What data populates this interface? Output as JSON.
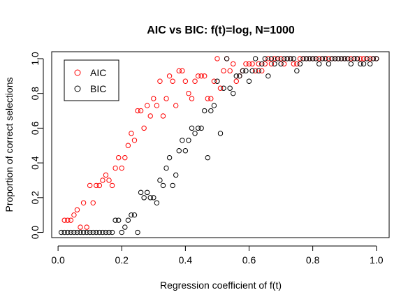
{
  "chart_data": {
    "type": "scatter",
    "title": "AIC vs BIC: f(t)=log, N=1000",
    "xlabel": "Regression coefficient of f(t)",
    "ylabel": "Proportion of correct selections",
    "xlim": [
      -0.02,
      1.04
    ],
    "ylim": [
      -0.03,
      1.04
    ],
    "xticks": [
      "0.0",
      "0.2",
      "0.4",
      "0.6",
      "0.8",
      "1.0"
    ],
    "yticks": [
      "0.0",
      "0.2",
      "0.4",
      "0.6",
      "0.8",
      "1.0"
    ],
    "grid": false,
    "legend": {
      "position": "top-left",
      "entries": [
        "AIC",
        "BIC"
      ]
    },
    "series": [
      {
        "name": "AIC",
        "color": "#ff0000",
        "marker": "open-circle",
        "points": [
          [
            0.02,
            0.07
          ],
          [
            0.03,
            0.07
          ],
          [
            0.04,
            0.07
          ],
          [
            0.05,
            0.1
          ],
          [
            0.06,
            0.13
          ],
          [
            0.07,
            0.03
          ],
          [
            0.08,
            0.17
          ],
          [
            0.09,
            0.03
          ],
          [
            0.1,
            0.27
          ],
          [
            0.11,
            0.17
          ],
          [
            0.12,
            0.27
          ],
          [
            0.13,
            0.27
          ],
          [
            0.14,
            0.3
          ],
          [
            0.15,
            0.33
          ],
          [
            0.16,
            0.3
          ],
          [
            0.17,
            0.27
          ],
          [
            0.18,
            0.37
          ],
          [
            0.19,
            0.43
          ],
          [
            0.2,
            0.37
          ],
          [
            0.21,
            0.43
          ],
          [
            0.22,
            0.5
          ],
          [
            0.23,
            0.57
          ],
          [
            0.24,
            0.53
          ],
          [
            0.25,
            0.7
          ],
          [
            0.26,
            0.7
          ],
          [
            0.27,
            0.6
          ],
          [
            0.28,
            0.73
          ],
          [
            0.29,
            0.67
          ],
          [
            0.3,
            0.77
          ],
          [
            0.31,
            0.73
          ],
          [
            0.32,
            0.87
          ],
          [
            0.33,
            0.67
          ],
          [
            0.34,
            0.77
          ],
          [
            0.35,
            0.9
          ],
          [
            0.36,
            0.87
          ],
          [
            0.37,
            0.73
          ],
          [
            0.38,
            0.93
          ],
          [
            0.39,
            0.93
          ],
          [
            0.4,
            0.87
          ],
          [
            0.41,
            0.8
          ],
          [
            0.42,
            0.77
          ],
          [
            0.43,
            0.87
          ],
          [
            0.44,
            0.9
          ],
          [
            0.45,
            0.9
          ],
          [
            0.46,
            0.9
          ],
          [
            0.47,
            0.77
          ],
          [
            0.48,
            0.77
          ],
          [
            0.49,
            0.87
          ],
          [
            0.5,
            1.0
          ],
          [
            0.51,
            0.83
          ],
          [
            0.52,
            0.93
          ],
          [
            0.53,
            1.0
          ],
          [
            0.54,
            0.93
          ],
          [
            0.55,
            0.97
          ],
          [
            0.56,
            0.87
          ],
          [
            0.57,
            0.9
          ],
          [
            0.58,
            0.93
          ],
          [
            0.59,
            0.97
          ],
          [
            0.6,
            0.97
          ],
          [
            0.61,
            0.97
          ],
          [
            0.62,
            0.93
          ],
          [
            0.63,
            0.97
          ],
          [
            0.64,
            0.93
          ],
          [
            0.65,
            0.97
          ],
          [
            0.66,
            1.0
          ],
          [
            0.67,
            0.97
          ],
          [
            0.68,
            1.0
          ],
          [
            0.69,
            1.0
          ],
          [
            0.7,
            1.0
          ],
          [
            0.71,
            0.97
          ],
          [
            0.72,
            1.0
          ],
          [
            0.73,
            1.0
          ],
          [
            0.74,
            0.97
          ],
          [
            0.75,
            0.97
          ],
          [
            0.76,
            1.0
          ],
          [
            0.77,
            1.0
          ],
          [
            0.78,
            1.0
          ],
          [
            0.79,
            1.0
          ],
          [
            0.8,
            1.0
          ],
          [
            0.81,
            1.0
          ],
          [
            0.82,
            1.0
          ],
          [
            0.83,
            1.0
          ],
          [
            0.84,
            1.0
          ],
          [
            0.85,
            1.0
          ],
          [
            0.86,
            1.0
          ],
          [
            0.87,
            1.0
          ],
          [
            0.88,
            1.0
          ],
          [
            0.89,
            1.0
          ],
          [
            0.9,
            1.0
          ],
          [
            0.91,
            1.0
          ],
          [
            0.92,
            1.0
          ],
          [
            0.93,
            1.0
          ],
          [
            0.94,
            1.0
          ],
          [
            0.95,
            1.0
          ],
          [
            0.96,
            1.0
          ],
          [
            0.97,
            1.0
          ],
          [
            0.98,
            1.0
          ],
          [
            0.99,
            1.0
          ],
          [
            1.0,
            1.0
          ]
        ]
      },
      {
        "name": "BIC",
        "color": "#000000",
        "marker": "open-circle",
        "points": [
          [
            0.01,
            0.0
          ],
          [
            0.02,
            0.0
          ],
          [
            0.03,
            0.0
          ],
          [
            0.04,
            0.0
          ],
          [
            0.05,
            0.0
          ],
          [
            0.06,
            0.0
          ],
          [
            0.07,
            0.0
          ],
          [
            0.08,
            0.0
          ],
          [
            0.09,
            0.0
          ],
          [
            0.1,
            0.0
          ],
          [
            0.11,
            0.0
          ],
          [
            0.12,
            0.0
          ],
          [
            0.13,
            0.0
          ],
          [
            0.14,
            0.0
          ],
          [
            0.15,
            0.0
          ],
          [
            0.16,
            0.0
          ],
          [
            0.17,
            0.0
          ],
          [
            0.18,
            0.07
          ],
          [
            0.19,
            0.07
          ],
          [
            0.2,
            0.0
          ],
          [
            0.21,
            0.03
          ],
          [
            0.22,
            0.07
          ],
          [
            0.23,
            0.1
          ],
          [
            0.24,
            0.1
          ],
          [
            0.25,
            0.0
          ],
          [
            0.26,
            0.23
          ],
          [
            0.27,
            0.2
          ],
          [
            0.28,
            0.23
          ],
          [
            0.29,
            0.2
          ],
          [
            0.3,
            0.2
          ],
          [
            0.31,
            0.17
          ],
          [
            0.32,
            0.3
          ],
          [
            0.33,
            0.27
          ],
          [
            0.34,
            0.37
          ],
          [
            0.35,
            0.43
          ],
          [
            0.36,
            0.27
          ],
          [
            0.37,
            0.33
          ],
          [
            0.38,
            0.47
          ],
          [
            0.39,
            0.53
          ],
          [
            0.4,
            0.47
          ],
          [
            0.41,
            0.53
          ],
          [
            0.42,
            0.6
          ],
          [
            0.43,
            0.57
          ],
          [
            0.44,
            0.6
          ],
          [
            0.45,
            0.6
          ],
          [
            0.46,
            0.7
          ],
          [
            0.47,
            0.43
          ],
          [
            0.48,
            0.7
          ],
          [
            0.49,
            0.73
          ],
          [
            0.5,
            0.87
          ],
          [
            0.51,
            0.57
          ],
          [
            0.52,
            0.83
          ],
          [
            0.53,
            1.0
          ],
          [
            0.54,
            0.83
          ],
          [
            0.55,
            0.8
          ],
          [
            0.56,
            0.9
          ],
          [
            0.57,
            0.9
          ],
          [
            0.58,
            0.93
          ],
          [
            0.59,
            0.93
          ],
          [
            0.6,
            0.87
          ],
          [
            0.61,
            0.93
          ],
          [
            0.62,
            1.0
          ],
          [
            0.63,
            0.93
          ],
          [
            0.64,
            0.97
          ],
          [
            0.65,
            1.0
          ],
          [
            0.66,
            0.9
          ],
          [
            0.67,
            1.0
          ],
          [
            0.68,
            0.97
          ],
          [
            0.69,
            1.0
          ],
          [
            0.7,
            0.97
          ],
          [
            0.71,
            1.0
          ],
          [
            0.72,
            1.0
          ],
          [
            0.73,
            1.0
          ],
          [
            0.74,
            1.0
          ],
          [
            0.75,
            0.93
          ],
          [
            0.76,
            0.97
          ],
          [
            0.77,
            1.0
          ],
          [
            0.78,
            1.0
          ],
          [
            0.79,
            1.0
          ],
          [
            0.8,
            1.0
          ],
          [
            0.81,
            1.0
          ],
          [
            0.82,
            0.97
          ],
          [
            0.83,
            1.0
          ],
          [
            0.84,
            1.0
          ],
          [
            0.85,
            0.97
          ],
          [
            0.86,
            1.0
          ],
          [
            0.87,
            1.0
          ],
          [
            0.88,
            1.0
          ],
          [
            0.89,
            1.0
          ],
          [
            0.9,
            1.0
          ],
          [
            0.91,
            1.0
          ],
          [
            0.92,
            0.97
          ],
          [
            0.93,
            1.0
          ],
          [
            0.94,
            1.0
          ],
          [
            0.95,
            0.97
          ],
          [
            0.96,
            0.97
          ],
          [
            0.97,
            1.0
          ],
          [
            0.98,
            0.97
          ],
          [
            0.99,
            1.0
          ],
          [
            1.0,
            1.0
          ]
        ]
      }
    ]
  }
}
